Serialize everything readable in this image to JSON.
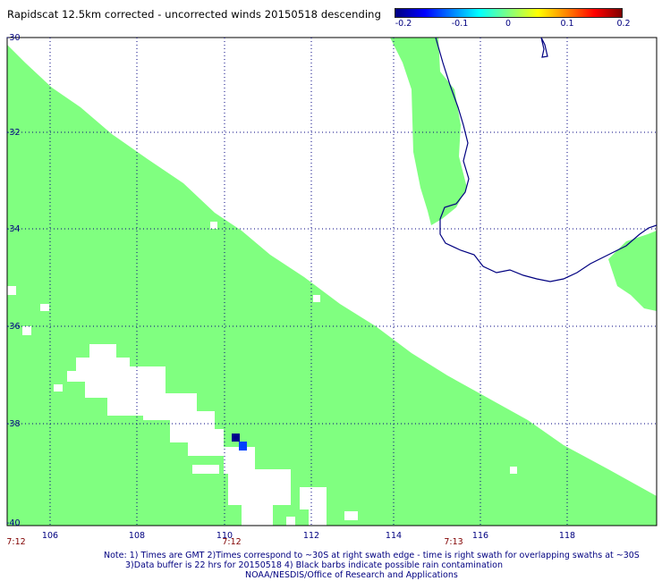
{
  "title": "Rapidscat 12.5km corrected - uncorrected winds 20150518 descending",
  "colorbar": {
    "ticks": [
      "-0.2",
      "-0.1",
      "0",
      "0.1",
      "0.2"
    ],
    "tick_values": [
      -0.2,
      -0.1,
      0,
      0.1,
      0.2
    ]
  },
  "map": {
    "lat_labels": [
      "-30",
      "-32",
      "-34",
      "-36",
      "-38",
      "-40"
    ],
    "lon_labels": [
      "106",
      "108",
      "110",
      "112",
      "114",
      "116",
      "118"
    ],
    "time_labels": [
      "7:12",
      "7:12",
      "7:13"
    ],
    "colors": {
      "swath": "#80ff80",
      "coast": "#000080",
      "grid": "#000080",
      "pixel_dark": "#00008b",
      "pixel_blue": "#0040ff"
    }
  },
  "notes": {
    "line1": "Note: 1) Times are GMT 2)Times correspond to ~30S at right swath edge - time is right swath for overlapping swaths at ~30S",
    "line2": "3)Data buffer is 22 hrs for 20150518 4) Black barbs indicate possible rain contamination",
    "line3": "NOAA/NESDIS/Office of Research and Applications"
  }
}
